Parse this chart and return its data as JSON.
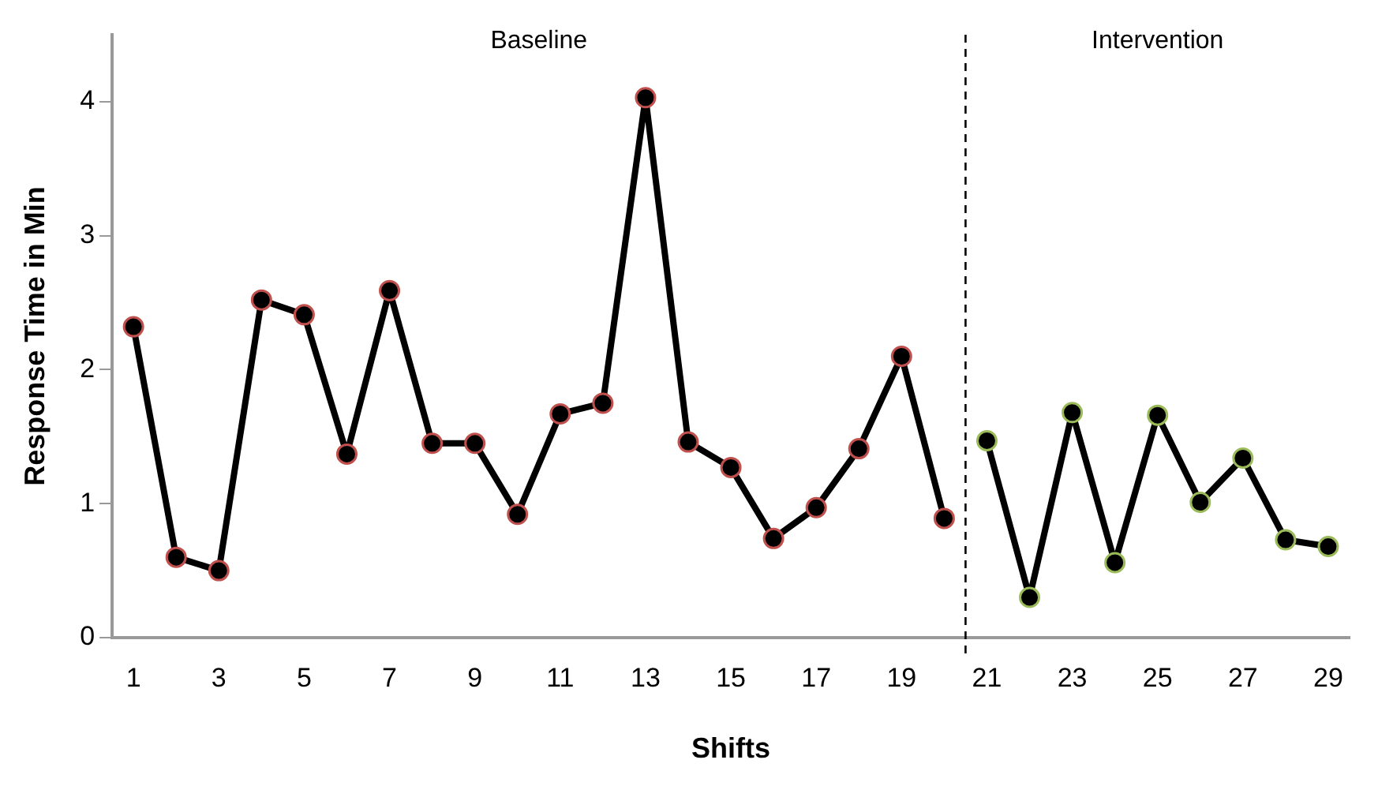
{
  "chart_data": {
    "type": "line",
    "xlabel": "Shifts",
    "ylabel": "Response Time in Min",
    "xlim": [
      0.5,
      29.5
    ],
    "xticks": [
      1,
      3,
      5,
      7,
      9,
      11,
      13,
      15,
      17,
      19,
      21,
      23,
      25,
      27,
      29
    ],
    "ylim": [
      0,
      4.5
    ],
    "yticks": [
      0,
      1,
      2,
      3,
      4
    ],
    "grid": false,
    "legend": false,
    "marker": "circle",
    "line_style": "solid",
    "series": [
      {
        "color": "#000000",
        "colors": [
          "#c0504d",
          "#c0504d",
          "#c0504d",
          "#c0504d",
          "#c0504d",
          "#c0504d",
          "#c0504d",
          "#c0504d",
          "#c0504d",
          "#c0504d",
          "#c0504d",
          "#c0504d",
          "#c0504d",
          "#c0504d",
          "#c0504d",
          "#c0504d",
          "#c0504d",
          "#c0504d",
          "#c0504d",
          "#c0504d"
        ],
        "x": [
          1,
          2,
          3,
          4,
          5,
          6,
          7,
          8,
          9,
          10,
          11,
          12,
          13,
          14,
          15,
          16,
          17,
          18,
          19,
          20
        ],
        "values": [
          2.32,
          0.6,
          0.5,
          2.52,
          2.41,
          1.37,
          2.59,
          1.45,
          1.45,
          0.92,
          1.67,
          1.75,
          4.03,
          1.46,
          1.27,
          0.74,
          0.97,
          1.41,
          2.1,
          0.89
        ]
      },
      {
        "color": "#000000",
        "colors": [
          "#9bbb59",
          "#9bbb59",
          "#9bbb59",
          "#9bbb59",
          "#9bbb59",
          "#9bbb59",
          "#9bbb59",
          "#9bbb59",
          "#9bbb59"
        ],
        "x": [
          21,
          22,
          23,
          24,
          25,
          26,
          27,
          28,
          29
        ],
        "values": [
          1.47,
          0.3,
          1.68,
          0.56,
          1.66,
          1.01,
          1.34,
          0.73,
          0.68
        ]
      }
    ],
    "ref_lines": [
      {
        "axis": "x",
        "value": 20.5,
        "color": "#000000",
        "line_style": "dashed"
      }
    ],
    "annotations": [
      "Baseline",
      "Intervention"
    ]
  }
}
